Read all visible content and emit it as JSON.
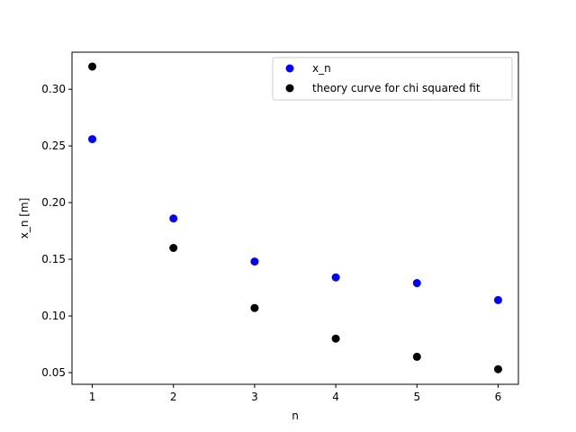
{
  "chart_data": {
    "type": "scatter",
    "xlabel": "n",
    "ylabel": "x_n [m]",
    "xlim": [
      0.75,
      6.25
    ],
    "ylim": [
      0.0397,
      0.3327
    ],
    "xticks": [
      1,
      2,
      3,
      4,
      5,
      6
    ],
    "xtick_labels": [
      "1",
      "2",
      "3",
      "4",
      "5",
      "6"
    ],
    "yticks": [
      0.05,
      0.1,
      0.15,
      0.2,
      0.25,
      0.3
    ],
    "ytick_labels": [
      "0.05",
      "0.10",
      "0.15",
      "0.20",
      "0.25",
      "0.30"
    ],
    "grid": false,
    "legend_position": "top-right",
    "series": [
      {
        "name": "x_n",
        "color": "#0000ff",
        "x": [
          1,
          2,
          3,
          4,
          5,
          6
        ],
        "y": [
          0.256,
          0.186,
          0.148,
          0.134,
          0.129,
          0.114
        ]
      },
      {
        "name": "theory curve for chi squared fit",
        "color": "#000000",
        "x": [
          1,
          2,
          3,
          4,
          5,
          6
        ],
        "y": [
          0.32,
          0.16,
          0.107,
          0.08,
          0.064,
          0.053
        ]
      }
    ]
  }
}
